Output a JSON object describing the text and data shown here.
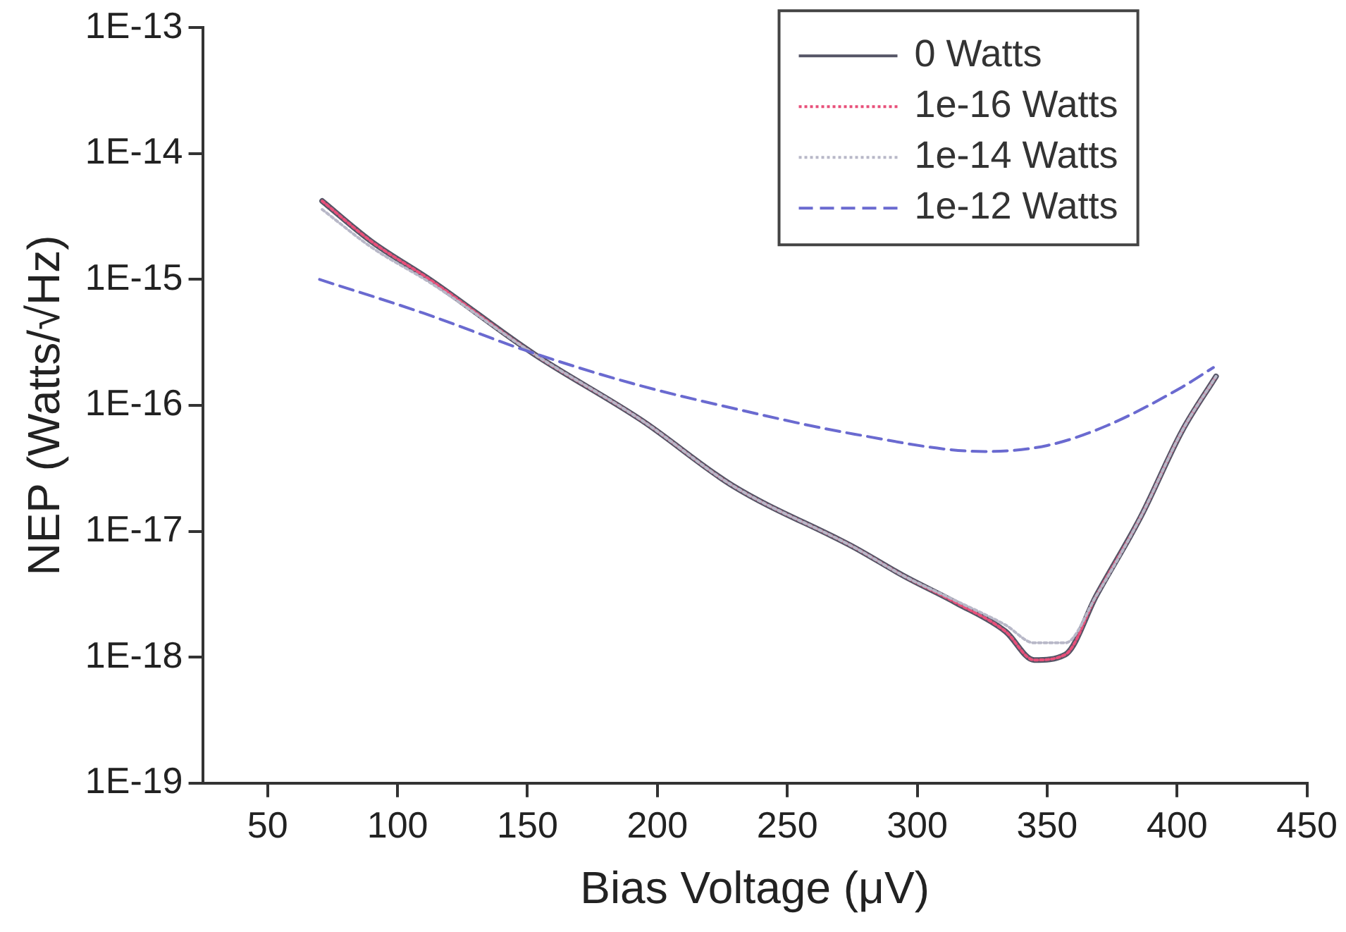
{
  "chart_data": {
    "type": "line",
    "xlabel": "Bias Voltage (μV)",
    "ylabel": "NEP (Watts/√Hz)",
    "xlim": [
      25,
      450
    ],
    "xticks": [
      50,
      100,
      150,
      200,
      250,
      300,
      350,
      400,
      450
    ],
    "ylim": [
      1e-19,
      1e-13
    ],
    "yticks": [
      {
        "value": 1e-19,
        "label": "1E-19"
      },
      {
        "value": 1e-18,
        "label": "1E-18"
      },
      {
        "value": 1e-17,
        "label": "1E-17"
      },
      {
        "value": 1e-16,
        "label": "1E-16"
      },
      {
        "value": 1e-15,
        "label": "1E-15"
      },
      {
        "value": 1e-14,
        "label": "1E-14"
      },
      {
        "value": 1e-13,
        "label": "1E-13"
      }
    ],
    "log": "y",
    "grid": false,
    "legend": "top right",
    "marker": "none",
    "series": [
      {
        "name": "0 Watts",
        "color": "#555566",
        "line_style": "solid",
        "x": [
          71,
          90,
          113,
          152,
          194,
          229,
          276,
          295,
          315,
          334,
          345,
          357,
          369,
          386,
          402,
          415
        ],
        "values": [
          4.2e-15,
          2e-15,
          9.8e-16,
          2.6e-16,
          7.6e-17,
          2.3e-17,
          7.4e-18,
          4.4e-18,
          2.7e-18,
          1.6e-18,
          9.5e-19,
          1.05e-18,
          3.1e-18,
          1.3e-17,
          6.3e-17,
          1.7e-16
        ]
      },
      {
        "name": "1e-16 Watts",
        "color": "#e8507a",
        "line_style": "dotted",
        "x": [
          71,
          90,
          113,
          152,
          194,
          229,
          276,
          295,
          315,
          334,
          345,
          357,
          369,
          386,
          402,
          415
        ],
        "values": [
          4.2e-15,
          2e-15,
          9.8e-16,
          2.6e-16,
          7.6e-17,
          2.3e-17,
          7.4e-18,
          4.4e-18,
          2.7e-18,
          1.6e-18,
          9.5e-19,
          1.05e-18,
          3.1e-18,
          1.3e-17,
          6.3e-17,
          1.7e-16
        ]
      },
      {
        "name": "1e-14 Watts",
        "color": "#b8b8c8",
        "line_style": "dotted",
        "x": [
          71,
          90,
          113,
          152,
          194,
          229,
          276,
          295,
          315,
          334,
          345,
          357,
          369,
          386,
          402,
          415
        ],
        "values": [
          3.6e-15,
          1.8e-15,
          9.3e-16,
          2.6e-16,
          7.6e-17,
          2.3e-17,
          7.4e-18,
          4.4e-18,
          2.8e-18,
          1.8e-18,
          1.3e-18,
          1.3e-18,
          3.1e-18,
          1.3e-17,
          6.3e-17,
          1.7e-16
        ]
      },
      {
        "name": "1e-12 Watts",
        "color": "#6a6ad0",
        "line_style": "dashed",
        "x": [
          70,
          110,
          150,
          190,
          229,
          276,
          326,
          350,
          373,
          402,
          414
        ],
        "values": [
          1e-15,
          5.4e-16,
          2.7e-16,
          1.5e-16,
          9.5e-17,
          5.9e-17,
          4.3e-17,
          4.8e-17,
          6.9e-17,
          1.4e-16,
          2e-16
        ]
      }
    ]
  }
}
